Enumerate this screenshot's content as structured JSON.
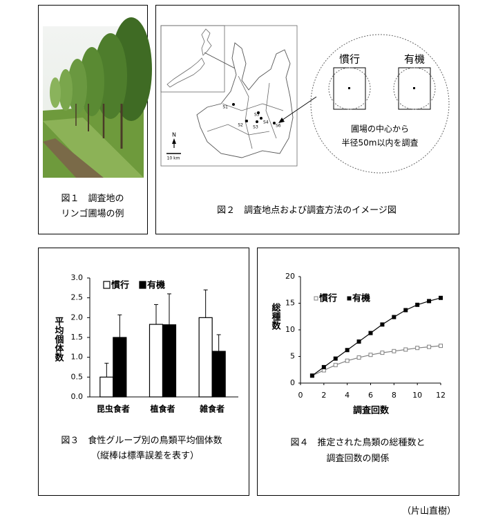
{
  "figure1": {
    "caption": [
      "図１　調査地の",
      "リンゴ圃場の例"
    ]
  },
  "figure2": {
    "caption": "図２　調査地点および調査方法のイメージ図",
    "sites": [
      "S1",
      "S2",
      "S3",
      "S4",
      "S5",
      "S6"
    ],
    "north": "N",
    "scale": "10 km",
    "methods": [
      "慣行",
      "有機"
    ],
    "note": [
      "圃場の中心から",
      "半径50m以内を調査"
    ]
  },
  "chart_data": [
    {
      "type": "bar",
      "ylabel": "平均個体数",
      "categories": [
        "昆虫食者",
        "植食者",
        "雑食者"
      ],
      "series": [
        {
          "name": "慣行",
          "color": "#ffffff",
          "values": [
            0.5,
            1.83,
            2.0
          ],
          "errors": [
            0.35,
            0.5,
            0.7
          ]
        },
        {
          "name": "有機",
          "color": "#000000",
          "values": [
            1.5,
            1.82,
            1.15
          ],
          "errors": [
            0.57,
            0.78,
            0.42
          ]
        }
      ],
      "ylim": [
        0,
        3
      ],
      "yticks": [
        {
          "value": 0,
          "label": "0.0"
        },
        {
          "value": 0.5,
          "label": "0.5"
        },
        {
          "value": 1,
          "label": "1.0"
        },
        {
          "value": 1.5,
          "label": "1.5"
        },
        {
          "value": 2,
          "label": "2.0"
        },
        {
          "value": 2.5,
          "label": "2.5"
        },
        {
          "value": 3,
          "label": "3.0"
        }
      ],
      "caption": [
        "図３　食性グループ別の鳥類平均個体数",
        "（縦棒は標準誤差を表す）"
      ]
    },
    {
      "type": "line",
      "xlabel": "調査回数",
      "ylabel": "総種数",
      "x": [
        1,
        2,
        3,
        4,
        5,
        6,
        7,
        8,
        9,
        10,
        11,
        12
      ],
      "series": [
        {
          "name": "慣行",
          "color": "#808080",
          "values": [
            1.4,
            2.4,
            3.4,
            4.2,
            4.8,
            5.3,
            5.7,
            6.0,
            6.3,
            6.6,
            6.8,
            7.0
          ]
        },
        {
          "name": "有機",
          "color": "#000000",
          "values": [
            1.4,
            3.0,
            4.6,
            6.2,
            7.8,
            9.4,
            11.0,
            12.4,
            13.7,
            14.7,
            15.4,
            16.0
          ]
        }
      ],
      "xlim": [
        0,
        12
      ],
      "xticks": [
        0,
        2,
        4,
        6,
        8,
        10,
        12
      ],
      "ylim": [
        0,
        20
      ],
      "yticks": [
        0,
        5,
        10,
        15,
        20
      ],
      "caption": [
        "図４　推定された鳥類の総種数と",
        "調査回数の関係"
      ]
    }
  ],
  "author": "（片山直樹）"
}
